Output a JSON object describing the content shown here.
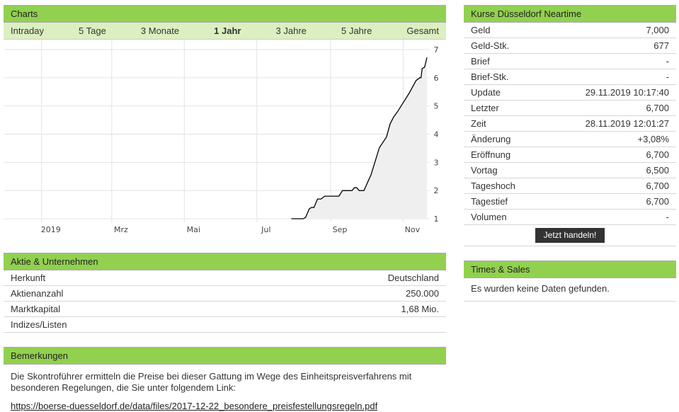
{
  "charts": {
    "title": "Charts",
    "tabs": [
      "Intraday",
      "5 Tage",
      "3 Monate",
      "1 Jahr",
      "3 Jahre",
      "5 Jahre",
      "Gesamt"
    ],
    "active_tab": "1 Jahr"
  },
  "chart_data": {
    "type": "area",
    "xlim": [
      "2018-11-30",
      "2019-11-21"
    ],
    "ylim": [
      1,
      7
    ],
    "grid": true,
    "xticks": [
      {
        "date": "2019-01-01",
        "label": "2019"
      },
      {
        "date": "2019-03-01",
        "label": "Mrz"
      },
      {
        "date": "2019-05-01",
        "label": "Mai"
      },
      {
        "date": "2019-07-01",
        "label": "Jul"
      },
      {
        "date": "2019-09-01",
        "label": "Sep"
      },
      {
        "date": "2019-11-01",
        "label": "Nov"
      }
    ],
    "yticks": [
      1,
      2,
      3,
      4,
      5,
      6,
      7
    ],
    "line_color": "#000000",
    "fill_color": "#efefef",
    "points": [
      [
        "2019-07-30",
        1.0
      ],
      [
        "2019-08-09",
        1.0
      ],
      [
        "2019-08-11",
        1.05
      ],
      [
        "2019-08-14",
        1.35
      ],
      [
        "2019-08-16",
        1.4
      ],
      [
        "2019-08-18",
        1.4
      ],
      [
        "2019-08-21",
        1.7
      ],
      [
        "2019-08-24",
        1.7
      ],
      [
        "2019-08-27",
        1.8
      ],
      [
        "2019-09-08",
        1.8
      ],
      [
        "2019-09-11",
        2.0
      ],
      [
        "2019-09-19",
        2.0
      ],
      [
        "2019-09-21",
        2.1
      ],
      [
        "2019-09-23",
        2.1
      ],
      [
        "2019-09-25",
        2.0
      ],
      [
        "2019-09-29",
        2.0
      ],
      [
        "2019-10-05",
        2.56
      ],
      [
        "2019-10-12",
        3.52
      ],
      [
        "2019-10-18",
        3.9
      ],
      [
        "2019-10-21",
        4.36
      ],
      [
        "2019-10-24",
        4.61
      ],
      [
        "2019-10-27",
        4.78
      ],
      [
        "2019-11-06",
        5.45
      ],
      [
        "2019-11-12",
        5.91
      ],
      [
        "2019-11-15",
        6.0
      ],
      [
        "2019-11-16",
        6.0
      ],
      [
        "2019-11-17",
        6.33
      ],
      [
        "2019-11-19",
        6.37
      ],
      [
        "2019-11-21",
        6.72
      ]
    ]
  },
  "aktie": {
    "title": "Aktie & Unternehmen",
    "rows": [
      {
        "label": "Herkunft",
        "value": "Deutschland"
      },
      {
        "label": "Aktienanzahl",
        "value": "250.000"
      },
      {
        "label": "Marktkapital",
        "value": "1,68 Mio."
      },
      {
        "label": "Indizes/Listen",
        "value": ""
      }
    ]
  },
  "bemerkungen": {
    "title": "Bemerkungen",
    "text": "Die Skontroführer ermitteln die Preise bei dieser Gattung im Wege des Einheitspreisverfahrens mit besonderen Regelungen, die Sie unter folgendem Link:",
    "link": "https://boerse-duesseldorf.de/data/files/2017-12-22_besondere_preisfestellungsregeln.pdf"
  },
  "kurse": {
    "title": "Kurse Düsseldorf Neartime",
    "rows": [
      {
        "label": "Geld",
        "value": "7,000"
      },
      {
        "label": "Geld-Stk.",
        "value": "677"
      },
      {
        "label": "Brief",
        "value": "-"
      },
      {
        "label": "Brief-Stk.",
        "value": "-"
      },
      {
        "label": "Update",
        "value": "29.11.2019 10:17:40"
      },
      {
        "label": "Letzter",
        "value": "6,700"
      },
      {
        "label": "Zeit",
        "value": "28.11.2019 12:01:27"
      },
      {
        "label": "Änderung",
        "value": "+3,08%"
      },
      {
        "label": "Eröffnung",
        "value": "6,700"
      },
      {
        "label": "Vortag",
        "value": "6,500"
      },
      {
        "label": "Tageshoch",
        "value": "6,700"
      },
      {
        "label": "Tagestief",
        "value": "6,700"
      },
      {
        "label": "Volumen",
        "value": "-"
      }
    ],
    "button": "Jetzt handeln!"
  },
  "times_sales": {
    "title": "Times & Sales",
    "message": "Es wurden keine Daten gefunden."
  }
}
